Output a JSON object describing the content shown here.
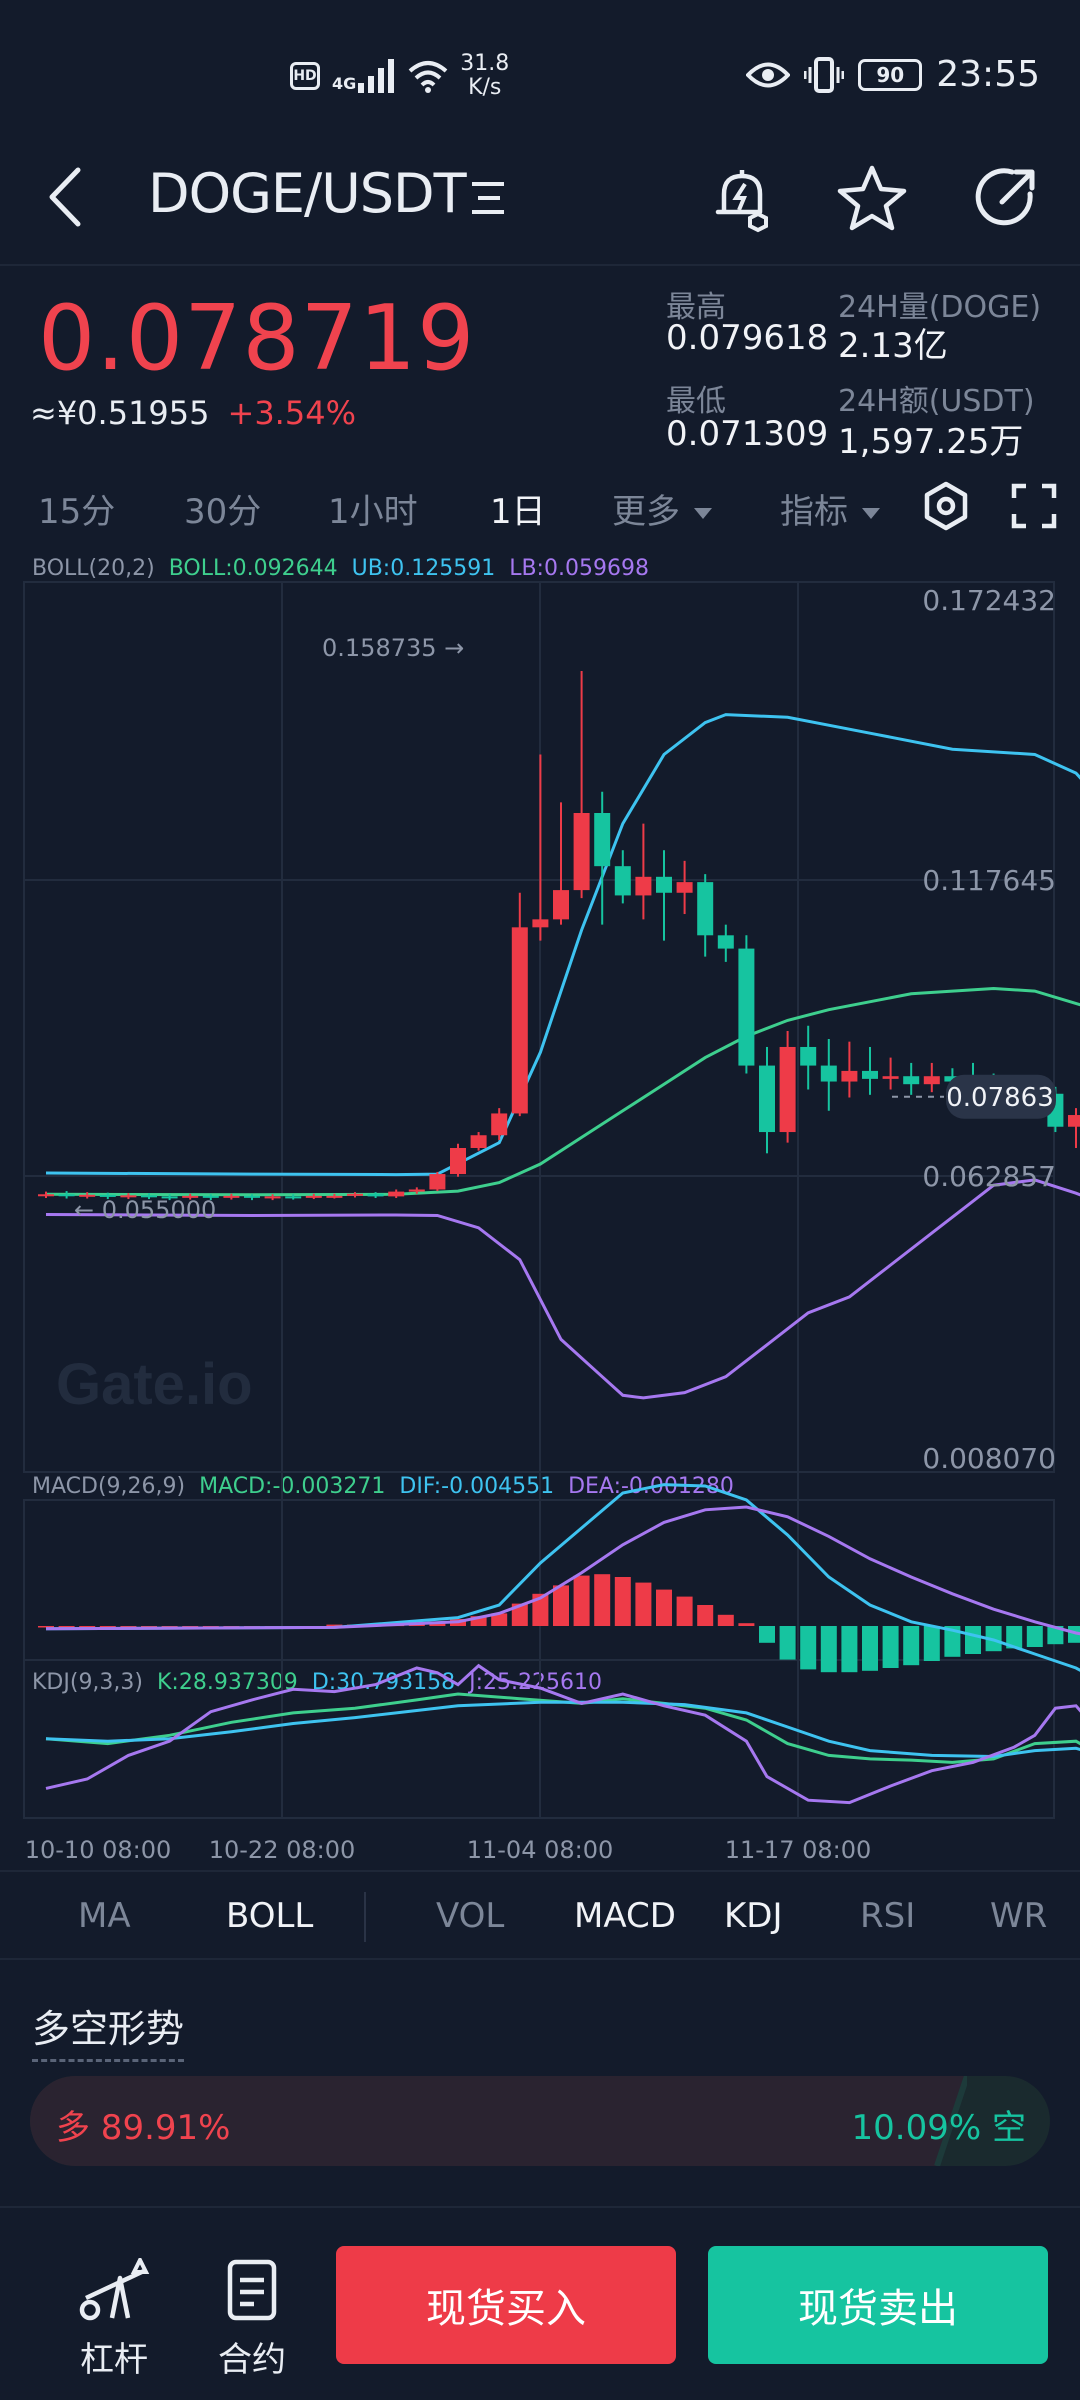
{
  "status_bar": {
    "hd": "HD",
    "network": "4G",
    "speed_value": "31.8",
    "speed_unit": "K/s",
    "battery": "90",
    "time": "23:55"
  },
  "header": {
    "pair": "DOGE/USDT",
    "icons": [
      "back-arrow-icon",
      "list-menu-icon",
      "price-alert-icon",
      "star-icon",
      "share-icon"
    ]
  },
  "price": {
    "last": "0.078719",
    "cny": "≈¥0.51955",
    "change": "+3.54%"
  },
  "stats": {
    "high_label": "最高",
    "high_value": "0.079618",
    "low_label": "最低",
    "low_value": "0.071309",
    "vol_label": "24H量(DOGE)",
    "vol_value": "2.13亿",
    "amt_label": "24H额(USDT)",
    "amt_value": "1,597.25万"
  },
  "timeframes": {
    "items": [
      "15分",
      "30分",
      "1小时",
      "1日"
    ],
    "active": "1日",
    "more": "更多",
    "indicators": "指标"
  },
  "boll_legend": {
    "name": "BOLL(20,2)",
    "boll": "BOLL:0.092644",
    "ub": "UB:0.125591",
    "lb": "LB:0.059698"
  },
  "macd_legend": {
    "name": "MACD(9,26,9)",
    "macd": "MACD:-0.003271",
    "dif": "DIF:-0.004551",
    "dea": "DEA:-0.001280"
  },
  "kdj_legend": {
    "name": "KDJ(9,3,3)",
    "k": "K:28.937309",
    "d": "D:30.793158",
    "j": "J:25.225610"
  },
  "chart_data": {
    "type": "candlestick",
    "y_ticks": [
      "0.172432",
      "0.117645",
      "0.062857",
      "0.008070"
    ],
    "ylim": [
      0.00807,
      0.172432
    ],
    "x_ticks": [
      "10-10 08:00",
      "10-22 08:00",
      "11-04 08:00",
      "11-17 08:00"
    ],
    "max_label": "0.158735 →",
    "min_label": "← 0.055000",
    "last_price_label": "0.07863",
    "watermark": "Gate.io",
    "candles": [
      [
        0.06,
        0.0603,
        0.0608,
        0.0596
      ],
      [
        0.0603,
        0.06,
        0.0609,
        0.0595
      ],
      [
        0.06,
        0.0602,
        0.0607,
        0.0595
      ],
      [
        0.0602,
        0.0598,
        0.0606,
        0.0594
      ],
      [
        0.0598,
        0.0601,
        0.0605,
        0.0594
      ],
      [
        0.0601,
        0.0599,
        0.0605,
        0.0594
      ],
      [
        0.0599,
        0.0597,
        0.0603,
        0.0592
      ],
      [
        0.0597,
        0.06,
        0.0604,
        0.0593
      ],
      [
        0.06,
        0.0598,
        0.0603,
        0.0592
      ],
      [
        0.0598,
        0.06,
        0.0604,
        0.0593
      ],
      [
        0.06,
        0.0597,
        0.0603,
        0.0592
      ],
      [
        0.0597,
        0.0599,
        0.0603,
        0.0592
      ],
      [
        0.0599,
        0.0598,
        0.0603,
        0.0593
      ],
      [
        0.0598,
        0.06,
        0.0604,
        0.0594
      ],
      [
        0.06,
        0.06,
        0.0604,
        0.0595
      ],
      [
        0.06,
        0.0604,
        0.0607,
        0.0597
      ],
      [
        0.0604,
        0.0599,
        0.0607,
        0.0596
      ],
      [
        0.0599,
        0.0608,
        0.0612,
        0.0596
      ],
      [
        0.0608,
        0.0612,
        0.0616,
        0.0604
      ],
      [
        0.0612,
        0.0641,
        0.0645,
        0.0609
      ],
      [
        0.0641,
        0.069,
        0.0698,
        0.0636
      ],
      [
        0.069,
        0.0714,
        0.072,
        0.0685
      ],
      [
        0.0714,
        0.0755,
        0.0765,
        0.0705
      ],
      [
        0.0755,
        0.1105,
        0.117,
        0.075
      ],
      [
        0.1105,
        0.112,
        0.143,
        0.108
      ],
      [
        0.112,
        0.1175,
        0.134,
        0.111
      ],
      [
        0.1175,
        0.132,
        0.1587,
        0.116
      ],
      [
        0.132,
        0.122,
        0.136,
        0.111
      ],
      [
        0.122,
        0.1165,
        0.125,
        0.115
      ],
      [
        0.1165,
        0.12,
        0.13,
        0.112
      ],
      [
        0.12,
        0.117,
        0.125,
        0.108
      ],
      [
        0.117,
        0.119,
        0.123,
        0.113
      ],
      [
        0.119,
        0.109,
        0.1205,
        0.105
      ],
      [
        0.109,
        0.1065,
        0.111,
        0.104
      ],
      [
        0.1065,
        0.0845,
        0.109,
        0.083
      ],
      [
        0.0845,
        0.072,
        0.088,
        0.068
      ],
      [
        0.072,
        0.088,
        0.091,
        0.07
      ],
      [
        0.088,
        0.0845,
        0.092,
        0.08
      ],
      [
        0.0845,
        0.0815,
        0.0895,
        0.076
      ],
      [
        0.0815,
        0.0835,
        0.089,
        0.0785
      ],
      [
        0.0835,
        0.082,
        0.088,
        0.079
      ],
      [
        0.082,
        0.0825,
        0.086,
        0.08
      ],
      [
        0.0825,
        0.081,
        0.085,
        0.079
      ],
      [
        0.081,
        0.0825,
        0.085,
        0.0795
      ],
      [
        0.0825,
        0.0815,
        0.084,
        0.079
      ],
      [
        0.0815,
        0.0805,
        0.085,
        0.0795
      ],
      [
        0.0805,
        0.08,
        0.083,
        0.079
      ],
      [
        0.08,
        0.0795,
        0.081,
        0.078
      ],
      [
        0.0795,
        0.0792,
        0.0815,
        0.0785
      ],
      [
        0.0792,
        0.073,
        0.0805,
        0.072
      ],
      [
        0.073,
        0.0752,
        0.0765,
        0.069
      ],
      [
        0.0752,
        0.0745,
        0.076,
        0.0705
      ],
      [
        0.0745,
        0.0787,
        0.0795,
        0.0713
      ]
    ],
    "boll_ub": [
      [
        0,
        0.0643
      ],
      [
        10,
        0.0641
      ],
      [
        17,
        0.064
      ],
      [
        19,
        0.0641
      ],
      [
        22,
        0.07
      ],
      [
        24,
        0.087
      ],
      [
        26,
        0.11
      ],
      [
        28,
        0.13
      ],
      [
        30,
        0.143
      ],
      [
        32,
        0.149
      ],
      [
        33,
        0.1505
      ],
      [
        36,
        0.15
      ],
      [
        40,
        0.147
      ],
      [
        44,
        0.144
      ],
      [
        48,
        0.143
      ],
      [
        50,
        0.1395
      ],
      [
        52,
        0.131
      ],
      [
        53,
        0.1265
      ]
    ],
    "boll_mid": [
      [
        0,
        0.0603
      ],
      [
        10,
        0.0602
      ],
      [
        17,
        0.0603
      ],
      [
        20,
        0.0609
      ],
      [
        22,
        0.0625
      ],
      [
        24,
        0.066
      ],
      [
        26,
        0.071
      ],
      [
        28,
        0.076
      ],
      [
        30,
        0.081
      ],
      [
        32,
        0.086
      ],
      [
        34,
        0.09
      ],
      [
        36,
        0.093
      ],
      [
        38,
        0.095
      ],
      [
        42,
        0.098
      ],
      [
        46,
        0.099
      ],
      [
        48,
        0.0985
      ],
      [
        51,
        0.095
      ],
      [
        53,
        0.093
      ]
    ],
    "boll_lb": [
      [
        0,
        0.0565
      ],
      [
        10,
        0.0563
      ],
      [
        17,
        0.0564
      ],
      [
        19,
        0.0563
      ],
      [
        21,
        0.054
      ],
      [
        23,
        0.048
      ],
      [
        25,
        0.033
      ],
      [
        27,
        0.026
      ],
      [
        28,
        0.0225
      ],
      [
        29,
        0.022
      ],
      [
        31,
        0.023
      ],
      [
        33,
        0.026
      ],
      [
        35,
        0.032
      ],
      [
        37,
        0.038
      ],
      [
        39,
        0.041
      ],
      [
        41,
        0.047
      ],
      [
        43,
        0.053
      ],
      [
        45,
        0.059
      ],
      [
        46,
        0.062
      ],
      [
        48,
        0.063
      ],
      [
        50,
        0.0605
      ],
      [
        51,
        0.059
      ],
      [
        53,
        0.0595
      ]
    ],
    "macd_hist": [
      0,
      0,
      0,
      0,
      0,
      0,
      0,
      0,
      0,
      0,
      0,
      0,
      0,
      0,
      0.0001,
      0.0001,
      0.0001,
      0.0001,
      0.0002,
      0.0003,
      0.0005,
      0.0007,
      0.0009,
      0.0016,
      0.0023,
      0.0029,
      0.0036,
      0.0037,
      0.0035,
      0.0031,
      0.0026,
      0.0021,
      0.0015,
      0.0008,
      0.0002,
      -0.0012,
      -0.0024,
      -0.0031,
      -0.0033,
      -0.0033,
      -0.0032,
      -0.003,
      -0.0028,
      -0.0025,
      -0.0022,
      -0.002,
      -0.0018,
      -0.0016,
      -0.0015,
      -0.0013,
      -0.0012,
      -0.0013,
      -0.0014
    ],
    "macd_dif": [
      [
        0,
        -0.0002
      ],
      [
        14,
        -0.0001
      ],
      [
        20,
        0.0006
      ],
      [
        22,
        0.0015
      ],
      [
        24,
        0.0045
      ],
      [
        26,
        0.007
      ],
      [
        28,
        0.0095
      ],
      [
        30,
        0.0101
      ],
      [
        32,
        0.01
      ],
      [
        34,
        0.009
      ],
      [
        36,
        0.0065
      ],
      [
        38,
        0.0035
      ],
      [
        40,
        0.0015
      ],
      [
        42,
        0.0003
      ],
      [
        44,
        -0.0003
      ],
      [
        46,
        -0.001
      ],
      [
        48,
        -0.002
      ],
      [
        50,
        -0.003
      ],
      [
        51,
        -0.0038
      ],
      [
        53,
        -0.0045
      ]
    ],
    "macd_dea": [
      [
        0,
        -0.0002
      ],
      [
        14,
        -0.0001
      ],
      [
        20,
        0.0003
      ],
      [
        22,
        0.0009
      ],
      [
        24,
        0.002
      ],
      [
        26,
        0.0038
      ],
      [
        28,
        0.0058
      ],
      [
        30,
        0.0074
      ],
      [
        32,
        0.0083
      ],
      [
        34,
        0.0085
      ],
      [
        36,
        0.0078
      ],
      [
        38,
        0.0064
      ],
      [
        40,
        0.0048
      ],
      [
        42,
        0.0035
      ],
      [
        44,
        0.0023
      ],
      [
        46,
        0.0012
      ],
      [
        48,
        0.0003
      ],
      [
        50,
        -0.0005
      ],
      [
        52,
        -0.001
      ],
      [
        53,
        -0.0013
      ]
    ],
    "kdj_k": [
      [
        0,
        62
      ],
      [
        3,
        58
      ],
      [
        6,
        65
      ],
      [
        9,
        76
      ],
      [
        12,
        84
      ],
      [
        15,
        88
      ],
      [
        18,
        95
      ],
      [
        20,
        100
      ],
      [
        23,
        96
      ],
      [
        26,
        92
      ],
      [
        28,
        96
      ],
      [
        30,
        92
      ],
      [
        32,
        88
      ],
      [
        34,
        78
      ],
      [
        36,
        58
      ],
      [
        38,
        48
      ],
      [
        40,
        45
      ],
      [
        42,
        44
      ],
      [
        44,
        42
      ],
      [
        46,
        45
      ],
      [
        48,
        58
      ],
      [
        50,
        60
      ],
      [
        52,
        40
      ],
      [
        53,
        32
      ]
    ],
    "kdj_d": [
      [
        0,
        62
      ],
      [
        3,
        60
      ],
      [
        6,
        62
      ],
      [
        9,
        68
      ],
      [
        12,
        75
      ],
      [
        15,
        80
      ],
      [
        18,
        86
      ],
      [
        20,
        90
      ],
      [
        24,
        93
      ],
      [
        28,
        93
      ],
      [
        31,
        91
      ],
      [
        34,
        84
      ],
      [
        36,
        72
      ],
      [
        38,
        60
      ],
      [
        40,
        52
      ],
      [
        43,
        48
      ],
      [
        46,
        47
      ],
      [
        48,
        52
      ],
      [
        50,
        54
      ],
      [
        52,
        44
      ],
      [
        53,
        36
      ]
    ],
    "kdj_j": [
      [
        0,
        20
      ],
      [
        2,
        28
      ],
      [
        4,
        48
      ],
      [
        6,
        60
      ],
      [
        8,
        85
      ],
      [
        10,
        95
      ],
      [
        12,
        104
      ],
      [
        14,
        102
      ],
      [
        16,
        108
      ],
      [
        18,
        122
      ],
      [
        19,
        118
      ],
      [
        20,
        108
      ],
      [
        21,
        124
      ],
      [
        22,
        112
      ],
      [
        24,
        105
      ],
      [
        26,
        92
      ],
      [
        28,
        100
      ],
      [
        30,
        90
      ],
      [
        32,
        82
      ],
      [
        34,
        60
      ],
      [
        35,
        30
      ],
      [
        37,
        10
      ],
      [
        39,
        8
      ],
      [
        41,
        22
      ],
      [
        43,
        35
      ],
      [
        45,
        42
      ],
      [
        47,
        55
      ],
      [
        48,
        65
      ],
      [
        49,
        88
      ],
      [
        50,
        90
      ],
      [
        51,
        70
      ],
      [
        52,
        35
      ],
      [
        53,
        28
      ]
    ]
  },
  "indicator_tabs": {
    "main": [
      "MA",
      "BOLL"
    ],
    "main_active": "BOLL",
    "sub": [
      "VOL",
      "MACD",
      "KDJ",
      "RSI",
      "WR"
    ],
    "sub_active": [
      "MACD",
      "KDJ"
    ]
  },
  "long_short": {
    "title": "多空形势",
    "long_label": "多 89.91%",
    "short_label": "10.09% 空",
    "long_pct": 89.91
  },
  "bottom": {
    "leverage": "杠杆",
    "contract": "合约",
    "buy": "现货买入",
    "sell": "现货卖出"
  },
  "colors": {
    "up": "#ee3b48",
    "down": "#16c4a0",
    "boll_mid": "#3ecf8e",
    "boll_ub": "#3ec3f0",
    "boll_lb": "#a678f0"
  }
}
